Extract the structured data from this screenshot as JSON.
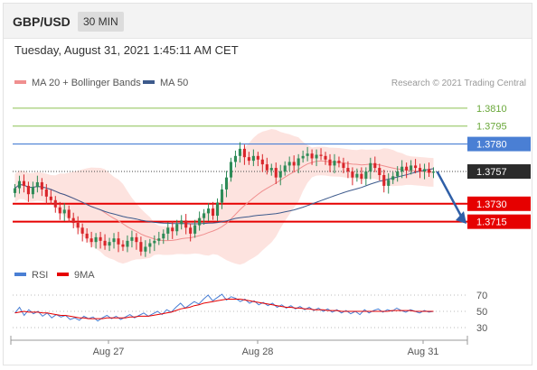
{
  "header": {
    "pair": "GBP/USD",
    "timeframe": "30 MIN"
  },
  "timestamp": "Tuesday, August 31, 2021 1:45:11 AM CET",
  "legend": {
    "ma20": "MA 20 + Bollinger Bands",
    "ma50": "MA 50",
    "credit": "Research © 2021 Trading Central"
  },
  "rsi_legend": {
    "rsi": "RSI",
    "ma9": "9MA"
  },
  "colors": {
    "ma20": "#f08f8f",
    "ma50": "#3d5a8c",
    "band": "#fde0dc",
    "up": "#2e8b57",
    "down": "#d9252a",
    "resistance": "#8cc152",
    "pivot": "#4a7fd4",
    "support": "#e60000",
    "rsi": "#4a7fd4",
    "rsi_ma": "#e60000"
  },
  "chart_data": [
    {
      "type": "candlestick",
      "title": "GBP/USD 30 MIN",
      "ylim": [
        1.368,
        1.3825
      ],
      "x_ticks": [
        "Aug 27",
        "Aug 28",
        "Aug 31"
      ],
      "levels": [
        {
          "label": "1.3810",
          "value": 1.381,
          "kind": "resistance"
        },
        {
          "label": "1.3795",
          "value": 1.3795,
          "kind": "resistance"
        },
        {
          "label": "1.3780",
          "value": 1.378,
          "kind": "pivot"
        },
        {
          "label": "1.3757",
          "value": 1.3757,
          "kind": "last"
        },
        {
          "label": "1.3730",
          "value": 1.373,
          "kind": "support"
        },
        {
          "label": "1.3715",
          "value": 1.3715,
          "kind": "support"
        }
      ],
      "close": [
        1.3743,
        1.3749,
        1.3745,
        1.3738,
        1.3744,
        1.3748,
        1.3742,
        1.3736,
        1.3733,
        1.3727,
        1.3722,
        1.3725,
        1.3718,
        1.3714,
        1.371,
        1.3705,
        1.3701,
        1.3698,
        1.3702,
        1.3699,
        1.3695,
        1.3698,
        1.3701,
        1.3696,
        1.3694,
        1.3699,
        1.3702,
        1.3698,
        1.369,
        1.3694,
        1.3697,
        1.3699,
        1.3701,
        1.3705,
        1.371,
        1.3707,
        1.3713,
        1.3716,
        1.371,
        1.3705,
        1.3712,
        1.3718,
        1.3722,
        1.3726,
        1.372,
        1.3731,
        1.3742,
        1.3752,
        1.3765,
        1.377,
        1.3776,
        1.3769,
        1.3766,
        1.377,
        1.3767,
        1.3763,
        1.3758,
        1.376,
        1.3752,
        1.3757,
        1.3762,
        1.3765,
        1.3762,
        1.3768,
        1.377,
        1.3772,
        1.3768,
        1.3771,
        1.377,
        1.3767,
        1.3762,
        1.3766,
        1.3764,
        1.376,
        1.3757,
        1.3752,
        1.3755,
        1.3751,
        1.3757,
        1.3764,
        1.376,
        1.3754,
        1.3745,
        1.375,
        1.3753,
        1.3757,
        1.3761,
        1.3758,
        1.3762,
        1.376,
        1.3757,
        1.3759,
        1.3756,
        1.3757
      ],
      "bollinger_ma": "MA 20",
      "series": [
        {
          "name": "MA 20"
        },
        {
          "name": "MA 50"
        }
      ]
    },
    {
      "type": "line",
      "title": "RSI",
      "ylim": [
        20,
        80
      ],
      "y_ticks": [
        "70",
        "50",
        "30"
      ],
      "series": [
        {
          "name": "RSI",
          "values": [
            48,
            55,
            45,
            52,
            47,
            50,
            44,
            48,
            42,
            46,
            43,
            45,
            40,
            42,
            39,
            44,
            41,
            43,
            38,
            42,
            45,
            41,
            44,
            40,
            43,
            46,
            42,
            45,
            48,
            44,
            47,
            50,
            46,
            52,
            49,
            55,
            60,
            54,
            58,
            62,
            59,
            65,
            70,
            63,
            67,
            71,
            64,
            68,
            66,
            62,
            65,
            60,
            63,
            58,
            61,
            57,
            60,
            55,
            58,
            54,
            57,
            53,
            56,
            52,
            55,
            51,
            54,
            50,
            53,
            49,
            52,
            48,
            51,
            47,
            50,
            46,
            52,
            48,
            51,
            53,
            49,
            52,
            50,
            54,
            51,
            49,
            52,
            50,
            48,
            51,
            49,
            50
          ]
        },
        {
          "name": "9MA",
          "values": [
            48,
            49,
            50,
            49,
            49,
            49,
            48,
            48,
            47,
            46,
            45,
            45,
            44,
            43,
            42,
            42,
            41,
            41,
            41,
            41,
            42,
            42,
            42,
            42,
            42,
            43,
            43,
            44,
            44,
            44,
            45,
            46,
            47,
            48,
            49,
            51,
            53,
            54,
            55,
            57,
            58,
            60,
            61,
            62,
            63,
            64,
            65,
            65,
            65,
            65,
            64,
            63,
            62,
            61,
            60,
            59,
            58,
            57,
            56,
            55,
            55,
            54,
            54,
            53,
            53,
            52,
            52,
            52,
            51,
            51,
            51,
            50,
            50,
            50,
            50,
            50,
            50,
            50,
            50,
            50,
            50,
            50,
            51,
            51,
            51,
            51,
            51,
            50,
            50,
            50,
            50,
            50
          ]
        }
      ]
    }
  ]
}
